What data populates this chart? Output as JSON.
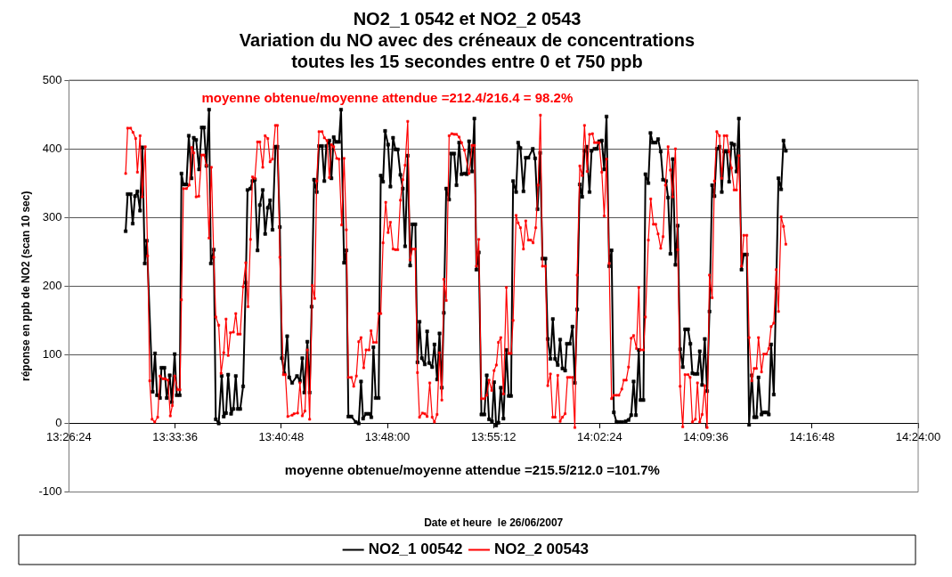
{
  "chart_data": {
    "type": "line",
    "title": "NO2_1 0542 et NO2_2 0543\nVariation du NO avec des créneaux de concentrations\ntoutes les 15 secondes entre 0 et 750 ppb",
    "xlabel": "Date et heure  le 26/06/2007",
    "ylabel": "réponse en ppb de NO2 (scan 10 sec)",
    "annotations": [
      "moyenne obtenue/moyenne attendue =212.4/216.4 = 98.2%",
      "moyenne obtenue/moyenne attendue =215.5/212.0 =101.7%"
    ],
    "xlim": [
      13.44,
      14.4
    ],
    "xticks": [
      {
        "value": 13.44,
        "label": "13:26:24"
      },
      {
        "value": 13.56,
        "label": "13:33:36"
      },
      {
        "value": 13.68,
        "label": "13:40:48"
      },
      {
        "value": 13.8,
        "label": "13:48:00"
      },
      {
        "value": 13.92,
        "label": "13:55:12"
      },
      {
        "value": 14.04,
        "label": "14:02:24"
      },
      {
        "value": 14.16,
        "label": "14:09:36"
      },
      {
        "value": 14.28,
        "label": "14:16:48"
      },
      {
        "value": 14.4,
        "label": "14:24:00"
      }
    ],
    "ylim": [
      -100,
      500
    ],
    "yticks": [
      -100,
      0,
      100,
      200,
      300,
      400,
      500
    ],
    "grid": "y",
    "legend": "bottom",
    "marker": "square",
    "line_style": "solid",
    "series": [
      {
        "name": "NO2_1 00542",
        "color": "#000000",
        "x": [
          13.5041,
          13.5064,
          13.5097,
          13.5121,
          13.5147,
          13.5174,
          13.5204,
          13.523,
          13.5257,
          13.528,
          13.5346,
          13.5373,
          13.5396,
          13.5429,
          13.5446,
          13.5479,
          13.5506,
          13.5539,
          13.5562,
          13.5595,
          13.5619,
          13.5652,
          13.5672,
          13.5695,
          13.5728,
          13.5755,
          13.5785,
          13.5811,
          13.5838,
          13.5871,
          13.5901,
          13.5927,
          13.5954,
          13.5984,
          13.6004,
          13.6037,
          13.606,
          13.6093,
          13.6127,
          13.615,
          13.6176,
          13.62,
          13.6233,
          13.6259,
          13.6286,
          13.6309,
          13.6336,
          13.6369,
          13.6399,
          13.6419,
          13.6452,
          13.6475,
          13.6502,
          13.6532,
          13.6558,
          13.6591,
          13.6618,
          13.6648,
          13.6674,
          13.6701,
          13.6734,
          13.6757,
          13.6784,
          13.6807,
          13.6834,
          13.6867,
          13.689,
          13.6923,
          13.6978,
          13.7012,
          13.7038,
          13.7061,
          13.7095,
          13.7121,
          13.7144,
          13.7171,
          13.7201,
          13.7227,
          13.7261,
          13.7287,
          13.731,
          13.7344,
          13.7367,
          13.7393,
          13.742,
          13.7453,
          13.7476,
          13.751,
          13.7536,
          13.7559,
          13.7593,
          13.7642,
          13.7676,
          13.7702,
          13.7725,
          13.7759,
          13.7792,
          13.7818,
          13.7842,
          13.7868,
          13.7901,
          13.7925,
          13.7951,
          13.7974,
          13.8008,
          13.8034,
          13.8064,
          13.8091,
          13.8117,
          13.8147,
          13.8174,
          13.82,
          13.823,
          13.8257,
          13.8283,
          13.8316,
          13.834,
          13.8363,
          13.8389,
          13.8423,
          13.8449,
          13.8472,
          13.8506,
          13.8532,
          13.8562,
          13.8589,
          13.8615,
          13.8638,
          13.8665,
          13.8698,
          13.8721,
          13.8755,
          13.8781,
          13.8811,
          13.8838,
          13.8871,
          13.8897,
          13.8923,
          13.8957,
          13.8983,
          13.9006,
          13.9033,
          13.9063,
          13.9096,
          13.9123,
          13.9149,
          13.9182,
          13.9206,
          13.9229,
          13.9255,
          13.9282,
          13.9312,
          13.9345,
          13.9372,
          13.9398,
          13.9421,
          13.9455,
          13.9478,
          13.9504,
          13.9538,
          13.9564,
          13.9594,
          13.9644,
          13.967,
          13.9697,
          13.9727,
          13.9753,
          13.9787,
          13.9813,
          13.9843,
          13.987,
          13.9896,
          13.9926,
          13.9953,
          13.9979,
          14.0009,
          14.0029,
          14.0062,
          14.0092,
          14.0119,
          14.0145,
          14.0175,
          14.0202,
          14.0228,
          14.0251,
          14.0285,
          14.0308,
          14.0341,
          14.0368,
          14.0394,
          14.0424,
          14.0451,
          14.0477,
          14.0507,
          14.0534,
          14.056,
          14.059,
          14.0617,
          14.065,
          14.0693,
          14.0726,
          14.0756,
          14.0783,
          14.0809,
          14.0842,
          14.0861,
          14.0894,
          14.0917,
          14.095,
          14.0974,
          14.1,
          14.1033,
          14.106,
          14.109,
          14.1116,
          14.115,
          14.1173,
          14.1199,
          14.1226,
          14.1256,
          14.1282,
          14.1309,
          14.1339,
          14.1365,
          14.1399,
          14.1425,
          14.1448,
          14.1475,
          14.1505,
          14.1531,
          14.1558,
          14.1588,
          14.1614,
          14.1641,
          14.1671,
          14.1697,
          14.1724,
          14.1754,
          14.178,
          14.1807,
          14.1837,
          14.1863,
          14.189,
          14.192,
          14.1946,
          14.1973,
          14.2003,
          14.2029,
          14.2063,
          14.2089,
          14.2119,
          14.2146,
          14.2172,
          14.2195,
          14.2229,
          14.2255,
          14.2285,
          14.2312,
          14.2338,
          14.2368,
          14.2395,
          14.2421,
          14.2451,
          14.2478,
          14.2504
        ],
        "values": [
          280,
          334,
          334,
          291,
          331,
          338,
          310,
          402,
          233,
          266,
          46,
          102,
          41,
          37,
          81,
          81,
          37,
          70,
          31,
          101,
          41,
          41,
          364,
          348,
          348,
          419,
          357,
          416,
          413,
          370,
          431,
          431,
          375,
          457,
          233,
          253,
          6,
          0,
          69,
          10,
          15,
          71,
          14,
          21,
          69,
          21,
          21,
          54,
          205,
          340,
          342,
          353,
          355,
          252,
          318,
          340,
          276,
          314,
          325,
          282,
          403,
          403,
          286,
          95,
          73,
          127,
          67,
          59,
          69,
          62,
          95,
          45,
          119,
          45,
          170,
          355,
          337,
          404,
          404,
          353,
          404,
          412,
          357,
          417,
          410,
          410,
          457,
          234,
          252,
          10,
          10,
          2,
          0,
          61,
          7,
          14,
          14,
          9,
          111,
          37,
          37,
          361,
          352,
          426,
          406,
          345,
          416,
          399,
          399,
          362,
          342,
          258,
          390,
          230,
          290,
          290,
          89,
          148,
          95,
          86,
          134,
          88,
          82,
          115,
          64,
          131,
          52,
          161,
          342,
          326,
          393,
          393,
          347,
          409,
          363,
          364,
          363,
          411,
          367,
          444,
          224,
          249,
          13,
          13,
          70,
          6,
          3,
          60,
          -3,
          1,
          52,
          7,
          107,
          40,
          40,
          353,
          337,
          409,
          401,
          338,
          387,
          387,
          400,
          386,
          312,
          394,
          240,
          240,
          123,
          94,
          152,
          94,
          85,
          122,
          80,
          77,
          116,
          116,
          141,
          59,
          166,
          348,
          330,
          397,
          403,
          337,
          397,
          400,
          400,
          411,
          412,
          370,
          447,
          229,
          252,
          16,
          2,
          2,
          2,
          3,
          5,
          12,
          61,
          12,
          107,
          34,
          34,
          363,
          350,
          423,
          409,
          409,
          414,
          396,
          355,
          353,
          329,
          247,
          385,
          231,
          288,
          108,
          82,
          137,
          137,
          116,
          73,
          72,
          72,
          105,
          56,
          123,
          47,
          163,
          347,
          331,
          400,
          403,
          337,
          396,
          396,
          352,
          408,
          406,
          367,
          444,
          224,
          246,
          246,
          -2,
          70,
          9,
          9,
          67,
          13,
          16,
          16,
          13,
          115,
          42,
          197,
          357,
          341,
          412,
          397
        ]
      },
      {
        "name": "NO2_2 00543",
        "color": "#ff0000",
        "x": [
          13.5041,
          13.5064,
          13.5097,
          13.5124,
          13.5154,
          13.5174,
          13.5204,
          13.523,
          13.5263,
          13.529,
          13.5313,
          13.534,
          13.537,
          13.5403,
          13.5429,
          13.5463,
          13.5489,
          13.5519,
          13.5546,
          13.5569,
          13.5595,
          13.5629,
          13.5655,
          13.5672,
          13.5695,
          13.5728,
          13.5761,
          13.5788,
          13.5811,
          13.5838,
          13.5868,
          13.5901,
          13.5927,
          13.5954,
          13.5984,
          13.601,
          13.6037,
          13.606,
          13.6093,
          13.612,
          13.615,
          13.6176,
          13.62,
          13.6226,
          13.6259,
          13.6286,
          13.6309,
          13.6336,
          13.6369,
          13.6399,
          13.6425,
          13.6452,
          13.6475,
          13.6502,
          13.6532,
          13.6558,
          13.6591,
          13.6618,
          13.6648,
          13.6674,
          13.6701,
          13.6734,
          13.6757,
          13.6784,
          13.6824,
          13.6847,
          13.6874,
          13.6923,
          13.6945,
          13.6985,
          13.7012,
          13.7038,
          13.7068,
          13.7095,
          13.7121,
          13.7151,
          13.7178,
          13.7201,
          13.7227,
          13.7261,
          13.7287,
          13.7317,
          13.7344,
          13.7367,
          13.7393,
          13.7427,
          13.7453,
          13.7483,
          13.751,
          13.7536,
          13.7559,
          13.7593,
          13.7619,
          13.7649,
          13.7676,
          13.7702,
          13.7732,
          13.7759,
          13.7792,
          13.7815,
          13.7842,
          13.7875,
          13.7901,
          13.7925,
          13.7951,
          13.7981,
          13.8008,
          13.8034,
          13.8064,
          13.8091,
          13.8117,
          13.8147,
          13.8174,
          13.82,
          13.823,
          13.8257,
          13.8283,
          13.8313,
          13.834,
          13.8363,
          13.8396,
          13.8423,
          13.8449,
          13.8479,
          13.8506,
          13.8532,
          13.8562,
          13.8589,
          13.8615,
          13.8638,
          13.8665,
          13.8698,
          13.8728,
          13.8755,
          13.8781,
          13.8811,
          13.8838,
          13.8871,
          13.8923,
          13.8957,
          13.8983,
          13.9006,
          13.9033,
          13.9063,
          13.9096,
          13.9123,
          13.9149,
          13.9179,
          13.9206,
          13.9232,
          13.9255,
          13.9282,
          13.9312,
          13.9345,
          13.9372,
          13.9398,
          13.9421,
          13.9455,
          13.9478,
          13.9504,
          13.9538,
          13.9564,
          13.9594,
          13.9621,
          13.9647,
          13.9677,
          13.9704,
          13.973,
          13.9753,
          13.9787,
          13.9813,
          13.9843,
          13.987,
          13.9896,
          13.9926,
          13.9953,
          13.9979,
          14.0009,
          14.0036,
          14.0062,
          14.0092,
          14.0119,
          14.0145,
          14.0175,
          14.0202,
          14.0228,
          14.0258,
          14.0285,
          14.0318,
          14.0341,
          14.0368,
          14.0394,
          14.0424,
          14.0451,
          14.0477,
          14.0507,
          14.0534,
          14.056,
          14.059,
          14.0617,
          14.065,
          14.0673,
          14.07,
          14.0726,
          14.0756,
          14.0783,
          14.0816,
          14.0842,
          14.0861,
          14.0894,
          14.0917,
          14.095,
          14.0977,
          14.1007,
          14.1033,
          14.106,
          14.109,
          14.1116,
          14.1143,
          14.1173,
          14.1199,
          14.1226,
          14.1256,
          14.1282,
          14.1309,
          14.1339,
          14.1365,
          14.1399,
          14.1422,
          14.1448,
          14.1482,
          14.1505,
          14.1531,
          14.1558,
          14.1588,
          14.1614,
          14.1641,
          14.1671,
          14.1697,
          14.1724,
          14.1754,
          14.178,
          14.1807,
          14.1837,
          14.1863,
          14.189,
          14.192,
          14.1946,
          14.1973,
          14.2003,
          14.2029,
          14.2063,
          14.2089,
          14.2119,
          14.2146,
          14.2172,
          14.2195,
          14.2229,
          14.2255,
          14.2285,
          14.2312,
          14.2338,
          14.2368,
          14.2395,
          14.2421,
          14.2451,
          14.2478,
          14.2504
        ],
        "values": [
          364,
          430,
          430,
          424,
          415,
          366,
          419,
          330,
          403,
          244,
          62,
          6,
          2,
          9,
          69,
          65,
          65,
          63,
          11,
          26,
          69,
          49,
          49,
          180,
          342,
          342,
          347,
          402,
          394,
          330,
          331,
          391,
          391,
          376,
          270,
          373,
          242,
          155,
          143,
          73,
          103,
          152,
          99,
          132,
          133,
          160,
          130,
          130,
          199,
          234,
          170,
          268,
          359,
          357,
          410,
          410,
          373,
          419,
          415,
          381,
          385,
          434,
          434,
          242,
          71,
          71,
          10,
          12,
          14,
          15,
          59,
          11,
          18,
          107,
          6,
          201,
          182,
          353,
          425,
          425,
          416,
          412,
          358,
          406,
          403,
          386,
          385,
          289,
          386,
          282,
          67,
          67,
          54,
          69,
          119,
          125,
          81,
          107,
          107,
          135,
          118,
          118,
          160,
          160,
          263,
          322,
          278,
          293,
          254,
          253,
          253,
          325,
          355,
          376,
          440,
          238,
          254,
          254,
          74,
          9,
          15,
          14,
          10,
          59,
          9,
          2,
          13,
          103,
          34,
          210,
          179,
          419,
          422,
          421,
          421,
          417,
          409,
          398,
          364,
          405,
          405,
          229,
          268,
          36,
          36,
          41,
          63,
          48,
          77,
          85,
          118,
          125,
          43,
          198,
          102,
          102,
          150,
          303,
          292,
          285,
          254,
          295,
          267,
          267,
          263,
          285,
          347,
          449,
          229,
          229,
          55,
          72,
          9,
          9,
          70,
          3,
          9,
          14,
          67,
          67,
          67,
          -6,
          216,
          375,
          361,
          434,
          367,
          421,
          422,
          409,
          409,
          409,
          366,
          302,
          385,
          233,
          36,
          41,
          41,
          41,
          50,
          63,
          63,
          82,
          124,
          128,
          109,
          198,
          107,
          107,
          155,
          267,
          327,
          290,
          290,
          276,
          255,
          272,
          347,
          403,
          369,
          330,
          400,
          253,
          54,
          -5,
          71,
          71,
          67,
          2,
          6,
          59,
          2,
          13,
          55,
          -6,
          216,
          183,
          353,
          425,
          419,
          357,
          419,
          419,
          396,
          372,
          340,
          340,
          390,
          229,
          274,
          274,
          125,
          62,
          80,
          80,
          125,
          75,
          101,
          101,
          109,
          141,
          146,
          224,
          163,
          301,
          287,
          261
        ]
      }
    ]
  }
}
